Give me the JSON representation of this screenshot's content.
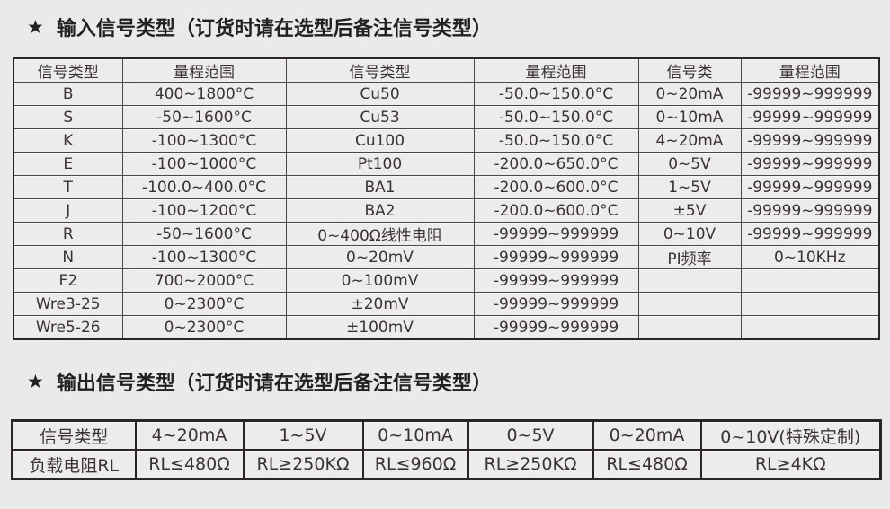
{
  "colors": {
    "page_background": "#ebeaea",
    "table_background": "#edecec",
    "border_dark": "#2b2526",
    "border_inner": "#4d4546",
    "text": "#3a3233",
    "title_text": "#232021"
  },
  "input_section": {
    "star": "★",
    "title": "输入信号类型（订货时请在选型后备注信号类型）",
    "table": {
      "headers": [
        "信号类型",
        "量程范围",
        "信号类型",
        "量程范围",
        "信号类",
        "量程范围"
      ],
      "rows": [
        [
          "B",
          "400~1800°C",
          "Cu50",
          "-50.0~150.0°C",
          "0~20mA",
          "-99999~999999"
        ],
        [
          "S",
          "-50~1600°C",
          "Cu53",
          "-50.0~150.0°C",
          "0~10mA",
          "-99999~999999"
        ],
        [
          "K",
          "-100~1300°C",
          "Cu100",
          "-50.0~150.0°C",
          "4~20mA",
          "-99999~999999"
        ],
        [
          "E",
          "-100~1000°C",
          "Pt100",
          "-200.0~650.0°C",
          "0~5V",
          "-99999~999999"
        ],
        [
          "T",
          "-100.0~400.0°C",
          "BA1",
          "-200.0~600.0°C",
          "1~5V",
          "-99999~999999"
        ],
        [
          "J",
          "-100~1200°C",
          "BA2",
          "-200.0~600.0°C",
          "±5V",
          "-99999~999999"
        ],
        [
          "R",
          "-50~1600°C",
          "0~400Ω线性电阻",
          "-99999~999999",
          "0~10V",
          "-99999~999999"
        ],
        [
          "N",
          "-100~1300°C",
          "0~20mV",
          "-99999~999999",
          "PI频率",
          "0~10KHz"
        ],
        [
          "F2",
          "700~2000°C",
          "0~100mV",
          "-99999~999999",
          "",
          ""
        ],
        [
          "Wre3-25",
          "0~2300°C",
          "±20mV",
          "-99999~999999",
          "",
          ""
        ],
        [
          "Wre5-26",
          "0~2300°C",
          "±100mV",
          "-99999~999999",
          "",
          ""
        ]
      ]
    }
  },
  "output_section": {
    "star": "★",
    "title": "输出信号类型（订货时请在选型后备注信号类型）",
    "table": {
      "rows": [
        [
          "信号类型",
          "4~20mA",
          "1~5V",
          "0~10mA",
          "0~5V",
          "0~20mA",
          "0~10V(特殊定制)"
        ],
        [
          "负载电阻RL",
          "RL≤480Ω",
          "RL≥250KΩ",
          "RL≤960Ω",
          "RL≥250KΩ",
          "RL≤480Ω",
          "RL≥4KΩ"
        ]
      ]
    }
  }
}
